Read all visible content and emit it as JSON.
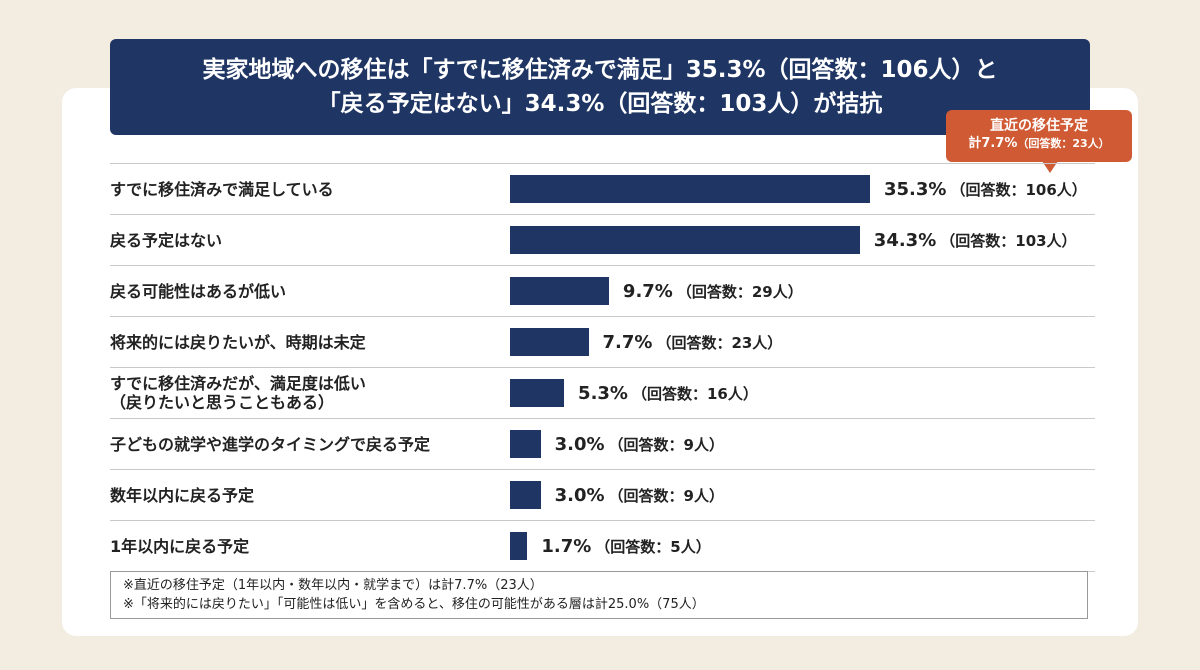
{
  "chart_data": {
    "type": "bar",
    "orientation": "horizontal",
    "title_lines": [
      "実家地域への移住は「すでに移住済みで満足」35.3%（回答数：106人）と",
      "「戻る予定はない」34.3%（回答数：103人）が拮抗"
    ],
    "categories": [
      "すでに移住済みで満足している",
      "戻る予定はない",
      "戻る可能性はあるが低い",
      "将来的には戻りたいが、時期は未定",
      "すでに移住済みだが、満足度は低い\n（戻りたいと思うこともある）",
      "子どもの就学や進学のタイミングで戻る予定",
      "数年以内に戻る予定",
      "1年以内に戻る予定"
    ],
    "values": [
      35.3,
      34.3,
      9.7,
      7.7,
      5.3,
      3.0,
      3.0,
      1.7
    ],
    "value_labels": [
      "35.3%",
      "34.3%",
      "9.7%",
      "7.7%",
      "5.3%",
      "3.0%",
      "3.0%",
      "1.7%"
    ],
    "count_labels": [
      "（回答数：106人）",
      "（回答数：103人）",
      "（回答数：29人）",
      "（回答数：23人）",
      "（回答数：16人）",
      "（回答数：9人）",
      "（回答数：9人）",
      "（回答数：5人）"
    ],
    "xlim": [
      0,
      35.3
    ],
    "bar_color": "#1f3563",
    "callout": {
      "line1": "直近の移住予定",
      "line2_main": "計7.7%",
      "line2_sub": "（回答数：23人）",
      "color": "#cf5a33"
    },
    "notes": [
      "※直近の移住予定（1年以内・数年以内・就学まで）は計7.7%（23人）",
      "※「将来的には戻りたい」「可能性は低い」を含めると、移住の可能性がある層は計25.0%（75人）"
    ]
  }
}
